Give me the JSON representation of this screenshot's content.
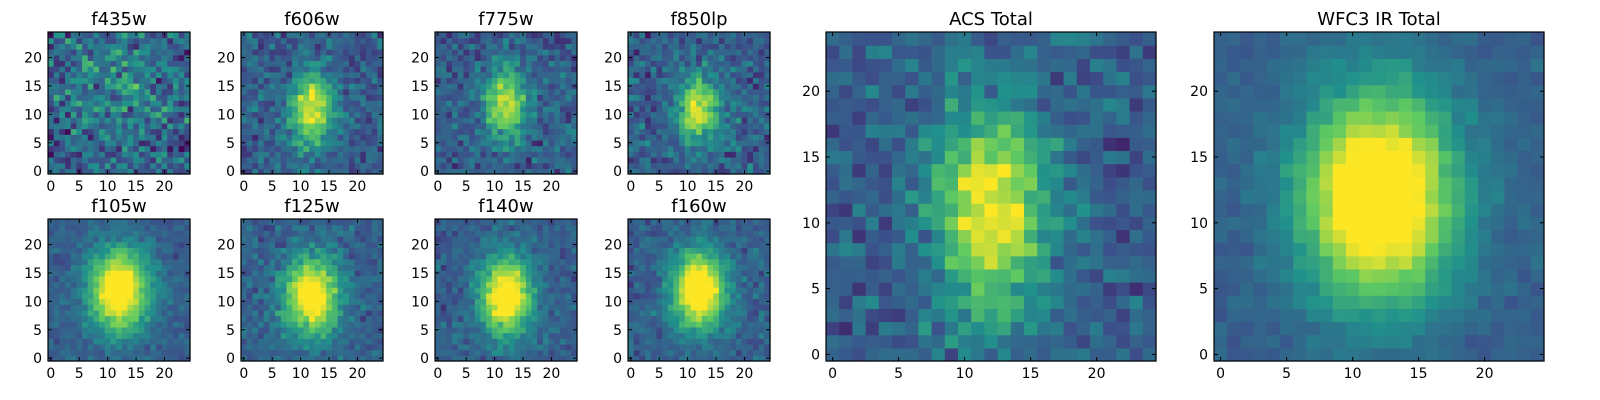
{
  "chart_data": [
    {
      "type": "heatmap",
      "title": "f435w",
      "grid": false,
      "xticks": [
        0,
        5,
        10,
        15,
        20
      ],
      "yticks": [
        0,
        5,
        10,
        15,
        20
      ],
      "xlim": [
        -0.5,
        24.5
      ],
      "ylim": [
        -0.5,
        24.5
      ],
      "size": [
        25,
        25
      ],
      "source": {
        "center": [
          12,
          14
        ],
        "sigma": [
          6,
          8
        ],
        "amplitude": 0.05,
        "noise": 0.34,
        "seed": 11
      },
      "colormap": [
        "#440154",
        "#3b528b",
        "#21918c",
        "#5ec962",
        "#fde725"
      ]
    },
    {
      "type": "heatmap",
      "title": "f606w",
      "grid": false,
      "xticks": [
        0,
        5,
        10,
        15,
        20
      ],
      "yticks": [
        0,
        5,
        10,
        15,
        20
      ],
      "xlim": [
        -0.5,
        24.5
      ],
      "ylim": [
        -0.5,
        24.5
      ],
      "size": [
        25,
        25
      ],
      "source": {
        "center": [
          12,
          11
        ],
        "sigma": [
          2.6,
          4.5
        ],
        "amplitude": 0.55,
        "noise": 0.22,
        "seed": 23
      },
      "colormap": [
        "#440154",
        "#3b528b",
        "#21918c",
        "#5ec962",
        "#fde725"
      ]
    },
    {
      "type": "heatmap",
      "title": "f775w",
      "grid": false,
      "xticks": [
        0,
        5,
        10,
        15,
        20
      ],
      "yticks": [
        0,
        5,
        10,
        15,
        20
      ],
      "xlim": [
        -0.5,
        24.5
      ],
      "ylim": [
        -0.5,
        24.5
      ],
      "size": [
        25,
        25
      ],
      "source": {
        "center": [
          12,
          12
        ],
        "sigma": [
          2.6,
          4.2
        ],
        "amplitude": 0.5,
        "noise": 0.22,
        "seed": 37
      },
      "colormap": [
        "#440154",
        "#3b528b",
        "#21918c",
        "#5ec962",
        "#fde725"
      ]
    },
    {
      "type": "heatmap",
      "title": "f850lp",
      "grid": false,
      "xticks": [
        0,
        5,
        10,
        15,
        20
      ],
      "yticks": [
        0,
        5,
        10,
        15,
        20
      ],
      "xlim": [
        -0.5,
        24.5
      ],
      "ylim": [
        -0.5,
        24.5
      ],
      "size": [
        25,
        25
      ],
      "source": {
        "center": [
          12,
          11
        ],
        "sigma": [
          2.5,
          4
        ],
        "amplitude": 0.55,
        "noise": 0.24,
        "seed": 41
      },
      "colormap": [
        "#440154",
        "#3b528b",
        "#21918c",
        "#5ec962",
        "#fde725"
      ]
    },
    {
      "type": "heatmap",
      "title": "f105w",
      "grid": false,
      "xticks": [
        0,
        5,
        10,
        15,
        20
      ],
      "yticks": [
        0,
        5,
        10,
        15,
        20
      ],
      "xlim": [
        -0.5,
        24.5
      ],
      "ylim": [
        -0.5,
        24.5
      ],
      "size": [
        25,
        25
      ],
      "source": {
        "center": [
          12,
          12
        ],
        "sigma": [
          3.6,
          5
        ],
        "amplitude": 0.75,
        "noise": 0.12,
        "seed": 53
      },
      "colormap": [
        "#440154",
        "#3b528b",
        "#21918c",
        "#5ec962",
        "#fde725"
      ]
    },
    {
      "type": "heatmap",
      "title": "f125w",
      "grid": false,
      "xticks": [
        0,
        5,
        10,
        15,
        20
      ],
      "yticks": [
        0,
        5,
        10,
        15,
        20
      ],
      "xlim": [
        -0.5,
        24.5
      ],
      "ylim": [
        -0.5,
        24.5
      ],
      "size": [
        25,
        25
      ],
      "source": {
        "center": [
          12,
          11
        ],
        "sigma": [
          3.4,
          4.8
        ],
        "amplitude": 0.7,
        "noise": 0.16,
        "seed": 61
      },
      "colormap": [
        "#440154",
        "#3b528b",
        "#21918c",
        "#5ec962",
        "#fde725"
      ]
    },
    {
      "type": "heatmap",
      "title": "f140w",
      "grid": false,
      "xticks": [
        0,
        5,
        10,
        15,
        20
      ],
      "yticks": [
        0,
        5,
        10,
        15,
        20
      ],
      "xlim": [
        -0.5,
        24.5
      ],
      "ylim": [
        -0.5,
        24.5
      ],
      "size": [
        25,
        25
      ],
      "source": {
        "center": [
          12,
          11
        ],
        "sigma": [
          3.2,
          4.6
        ],
        "amplitude": 0.75,
        "noise": 0.15,
        "seed": 71
      },
      "colormap": [
        "#440154",
        "#3b528b",
        "#21918c",
        "#5ec962",
        "#fde725"
      ]
    },
    {
      "type": "heatmap",
      "title": "f160w",
      "grid": false,
      "xticks": [
        0,
        5,
        10,
        15,
        20
      ],
      "yticks": [
        0,
        5,
        10,
        15,
        20
      ],
      "xlim": [
        -0.5,
        24.5
      ],
      "ylim": [
        -0.5,
        24.5
      ],
      "size": [
        25,
        25
      ],
      "source": {
        "center": [
          12,
          12
        ],
        "sigma": [
          3.2,
          4.6
        ],
        "amplitude": 0.8,
        "noise": 0.15,
        "seed": 83
      },
      "colormap": [
        "#440154",
        "#3b528b",
        "#21918c",
        "#5ec962",
        "#fde725"
      ]
    },
    {
      "type": "heatmap",
      "title": "ACS Total",
      "grid": false,
      "xticks": [
        0,
        5,
        10,
        15,
        20
      ],
      "yticks": [
        0,
        5,
        10,
        15,
        20
      ],
      "xlim": [
        -0.5,
        24.5
      ],
      "ylim": [
        -0.5,
        24.5
      ],
      "size": [
        25,
        25
      ],
      "source": {
        "center": [
          12,
          11
        ],
        "sigma": [
          3,
          5.5
        ],
        "amplitude": 0.6,
        "noise": 0.2,
        "seed": 97
      },
      "colormap": [
        "#440154",
        "#3b528b",
        "#21918c",
        "#5ec962",
        "#fde725"
      ]
    },
    {
      "type": "heatmap",
      "title": "WFC3 IR Total",
      "grid": false,
      "xticks": [
        0,
        5,
        10,
        15,
        20
      ],
      "yticks": [
        0,
        5,
        10,
        15,
        20
      ],
      "xlim": [
        -0.5,
        24.5
      ],
      "ylim": [
        -0.5,
        24.5
      ],
      "size": [
        25,
        25
      ],
      "source": {
        "center": [
          12,
          12
        ],
        "sigma": [
          4,
          5.5
        ],
        "amplitude": 0.85,
        "noise": 0.08,
        "seed": 109
      },
      "colormap": [
        "#440154",
        "#3b528b",
        "#21918c",
        "#5ec962",
        "#fde725"
      ]
    }
  ]
}
